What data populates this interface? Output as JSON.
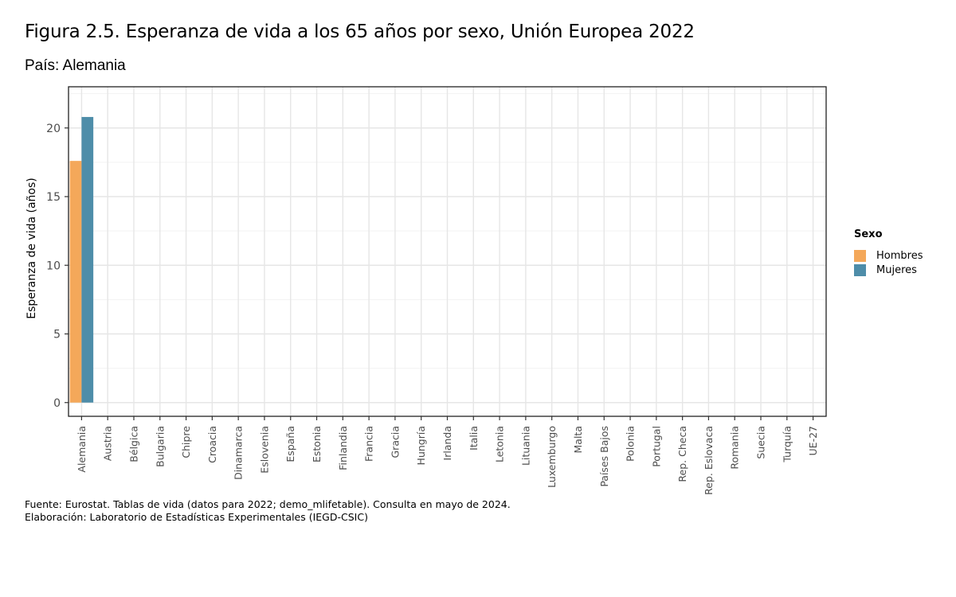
{
  "title": "Figura 2.5. Esperanza de vida a los 65 años por sexo, Unión Europea 2022",
  "subtitle": "País: Alemania",
  "caption": [
    "Fuente: Eurostat. Tablas de vida (datos para 2022; demo_mlifetable). Consulta en mayo de 2024.",
    "Elaboración: Laboratorio de Estadísticas Experimentales (IEGD-CSIC)"
  ],
  "legend": {
    "title": "Sexo",
    "items": [
      {
        "label": "Hombres",
        "color": "#F4A85A"
      },
      {
        "label": "Mujeres",
        "color": "#4E8DA9"
      }
    ]
  },
  "chart_data": {
    "type": "bar",
    "ylabel": "Esperanza de vida (años)",
    "xlabel": "",
    "ylim": [
      -1.0,
      23.0
    ],
    "yticks": [
      0,
      5,
      10,
      15,
      20
    ],
    "grid": true,
    "legend_position": "right",
    "categories": [
      "Alemania",
      "Austria",
      "Bélgica",
      "Bulgaria",
      "Chipre",
      "Croacia",
      "Dinamarca",
      "Eslovenia",
      "España",
      "Estonia",
      "Finlandia",
      "Francia",
      "Gracia",
      "Hungría",
      "Irlanda",
      "Italia",
      "Letonia",
      "Lituania",
      "Luxemburgo",
      "Malta",
      "Países Bajos",
      "Polonia",
      "Portugal",
      "Rep. Checa",
      "Rep. Eslovaca",
      "Romania",
      "Suecia",
      "Turquía",
      "UE-27"
    ],
    "series": [
      {
        "name": "Hombres",
        "color": "#F4A85A",
        "values": [
          17.6,
          null,
          null,
          null,
          null,
          null,
          null,
          null,
          null,
          null,
          null,
          null,
          null,
          null,
          null,
          null,
          null,
          null,
          null,
          null,
          null,
          null,
          null,
          null,
          null,
          null,
          null,
          null,
          null
        ]
      },
      {
        "name": "Mujeres",
        "color": "#4E8DA9",
        "values": [
          20.8,
          null,
          null,
          null,
          null,
          null,
          null,
          null,
          null,
          null,
          null,
          null,
          null,
          null,
          null,
          null,
          null,
          null,
          null,
          null,
          null,
          null,
          null,
          null,
          null,
          null,
          null,
          null,
          null
        ]
      }
    ]
  }
}
